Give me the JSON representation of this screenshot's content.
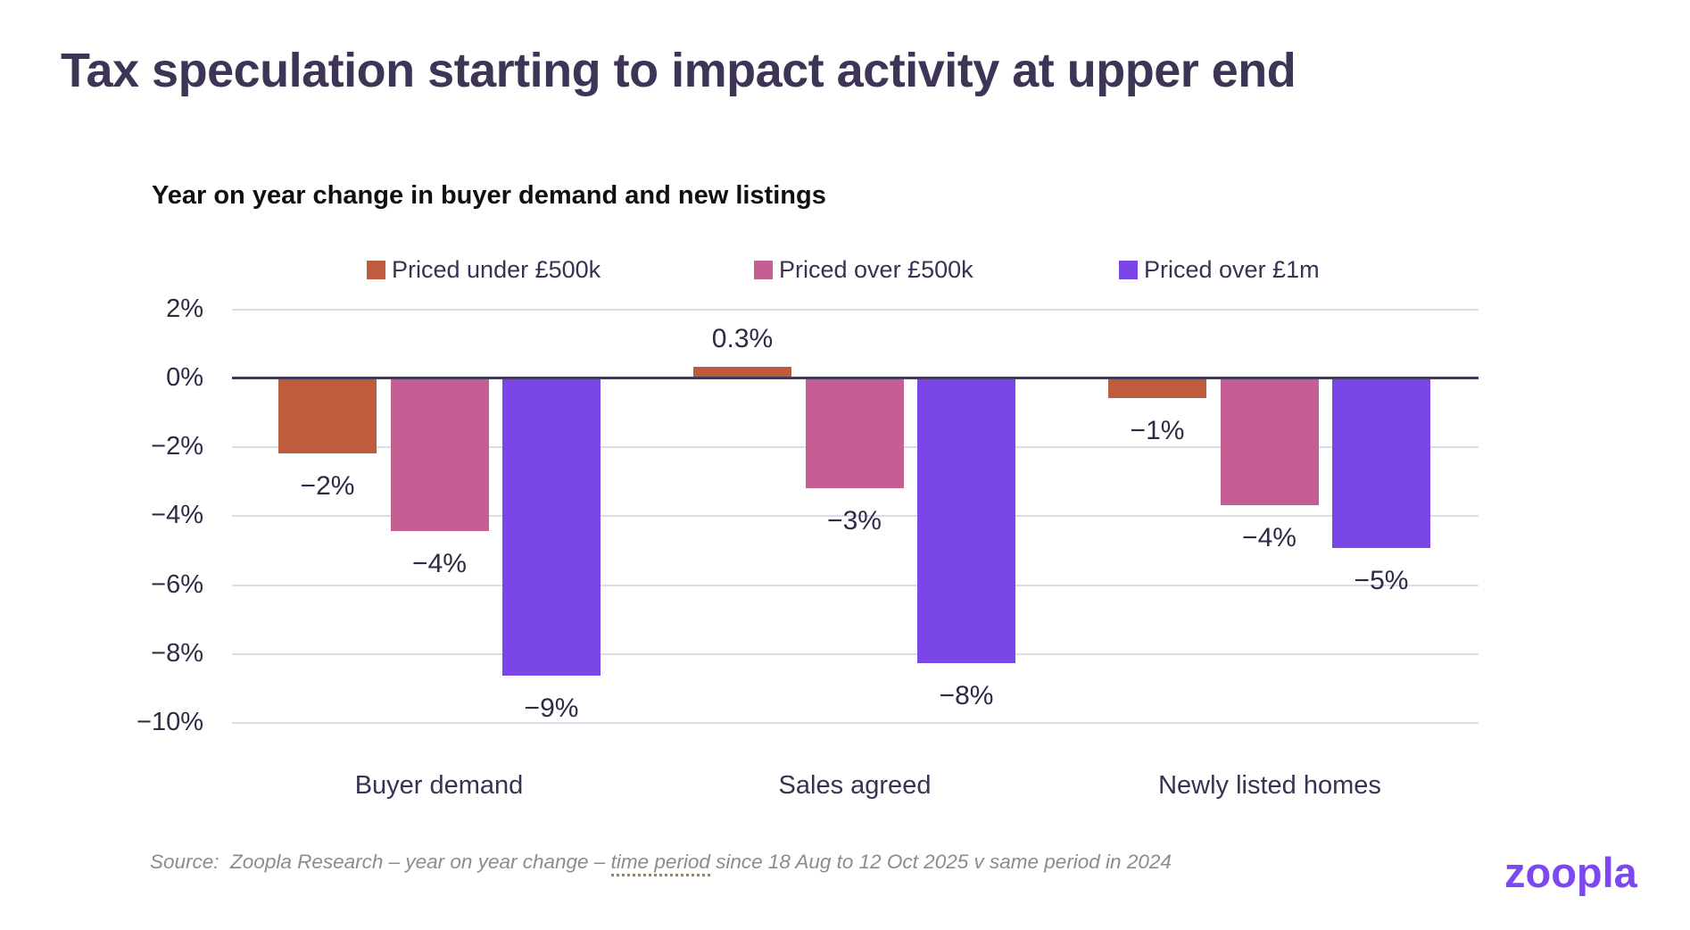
{
  "title": "Tax speculation starting to impact activity at upper end",
  "chart_data": {
    "type": "bar",
    "title": "Year on year change in buyer demand and new listings",
    "categories": [
      "Buyer demand",
      "Sales agreed",
      "Newly listed homes"
    ],
    "series": [
      {
        "name": "Priced under £500k",
        "color": "#bf5c3e",
        "values": [
          -2.2,
          0.3,
          -0.6
        ],
        "labels": [
          "−2%",
          "0.3%",
          "−1%"
        ]
      },
      {
        "name": "Priced over £500k",
        "color": "#c55e93",
        "values": [
          -4.45,
          -3.2,
          -3.7
        ],
        "labels": [
          "−4%",
          "−3%",
          "−4%"
        ]
      },
      {
        "name": "Priced over £1m",
        "color": "#7a46e8",
        "values": [
          -8.65,
          -8.3,
          -4.95
        ],
        "labels": [
          "−9%",
          "−8%",
          "−5%"
        ]
      }
    ],
    "ylabel": "",
    "ylim": [
      -10,
      2
    ],
    "yticks": [
      2,
      0,
      -2,
      -4,
      -6,
      -8,
      -10
    ],
    "ytick_labels": [
      "2%",
      "0%",
      "−2%",
      "−4%",
      "−6%",
      "−8%",
      "−10%"
    ],
    "grid": true,
    "legend_position": "top"
  },
  "source": {
    "prefix": "Source:  Zoopla Research – year on year change – ",
    "underlined": "time period",
    "suffix": " since 18 Aug to 12 Oct 2025 v same period in 2024"
  },
  "logo_text": "zoopla",
  "colors": {
    "title_ink": "#3d3456",
    "subtitle_ink": "#101014",
    "tick_ink": "#2e2b44",
    "gridline": "#dcdce8",
    "zero_line": "#3e3a56",
    "source_gray": "#8c8c8c",
    "underline_gold": "#a9813c",
    "logo_purple": "#7d48f2",
    "background": "#ffffff"
  }
}
